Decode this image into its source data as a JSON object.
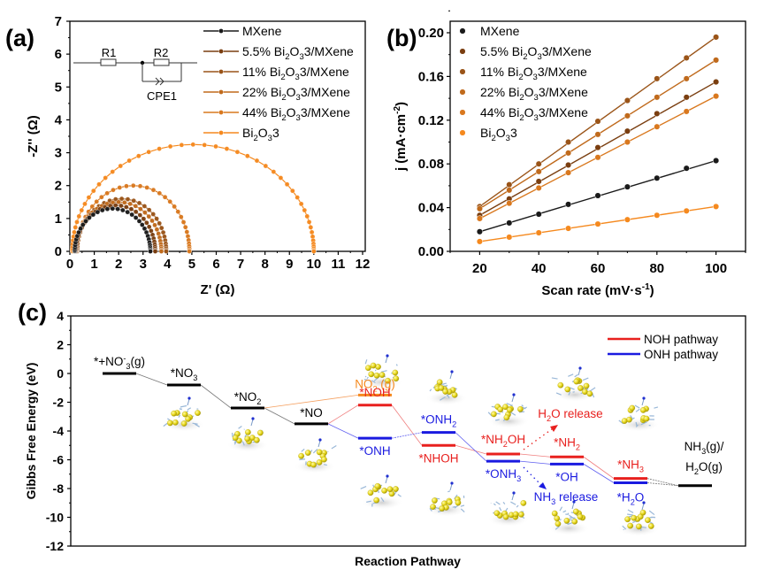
{
  "chart_data": [
    {
      "panel": "(a)",
      "type": "line",
      "title": "",
      "xlabel": "Z' (Ω)",
      "ylabel": "-Z'' (Ω)",
      "xlim": [
        0,
        12.4
      ],
      "ylim": [
        0,
        7
      ],
      "xticks": [
        "0",
        "1",
        "2",
        "3",
        "4",
        "5",
        "6",
        "7",
        "8",
        "9",
        "10",
        "11",
        "12"
      ],
      "yticks": [
        "0",
        "1",
        "2",
        "3",
        "4",
        "5",
        "6",
        "7"
      ],
      "legend_position": "top-right",
      "inset_circuit": {
        "labels": [
          "R1",
          "R2",
          "CPE1"
        ]
      },
      "series": [
        {
          "name": "MXene",
          "color": "#1a1a1a",
          "semicircle": {
            "z_start": 0.2,
            "z_end": 3.3,
            "peak": 1.3
          }
        },
        {
          "name": "5.5% Bi2O3/MXene",
          "label_parts": [
            "5.5% Bi",
            "2",
            "O",
            "3",
            "/MXene"
          ],
          "color": "#7a3e10",
          "semicircle": {
            "z_start": 0.25,
            "z_end": 3.5,
            "peak": 1.4
          }
        },
        {
          "name": "11% Bi2O3/MXene",
          "label_parts": [
            "11% Bi",
            "2",
            "O",
            "3",
            "/MXene"
          ],
          "color": "#9a5418",
          "semicircle": {
            "z_start": 0.3,
            "z_end": 3.95,
            "peak": 1.6
          }
        },
        {
          "name": "22% Bi2O3/MXene",
          "label_parts": [
            "22% Bi",
            "2",
            "O",
            "3",
            "/MXene"
          ],
          "color": "#c06a1c",
          "semicircle": {
            "z_start": 0.25,
            "z_end": 3.75,
            "peak": 1.5
          }
        },
        {
          "name": "44% Bi2O3/MXene",
          "label_parts": [
            "44% Bi",
            "2",
            "O",
            "3",
            "/MXene"
          ],
          "color": "#d9781e",
          "semicircle": {
            "z_start": 0.3,
            "z_end": 4.9,
            "peak": 2.0
          }
        },
        {
          "name": "Bi2O3",
          "label_parts": [
            "Bi",
            "2",
            "O",
            "3",
            ""
          ],
          "color": "#f5891e",
          "semicircle": {
            "z_start": 0.1,
            "z_end": 10.0,
            "peak": 3.25
          }
        }
      ]
    },
    {
      "panel": "(b)",
      "type": "scatter",
      "title": "",
      "xlabel": "Scan rate (mV·s-1)",
      "ylabel": "j (mA·cm-2)",
      "xlim": [
        10,
        110
      ],
      "ylim": [
        0,
        0.21
      ],
      "xticks": [
        "20",
        "40",
        "60",
        "80",
        "100"
      ],
      "yticks": [
        "0.00",
        "0.04",
        "0.08",
        "0.12",
        "0.16",
        "0.20"
      ],
      "legend_position": "top-left",
      "x": [
        20,
        30,
        40,
        50,
        60,
        70,
        80,
        90,
        100
      ],
      "series": [
        {
          "name": "MXene",
          "color": "#1a1a1a",
          "values": [
            0.018,
            0.026,
            0.034,
            0.043,
            0.051,
            0.059,
            0.067,
            0.076,
            0.083
          ]
        },
        {
          "name": "5.5% Bi2O3/MXene",
          "color": "#7a3e10",
          "values": [
            0.033,
            0.048,
            0.064,
            0.079,
            0.095,
            0.11,
            0.126,
            0.141,
            0.155
          ]
        },
        {
          "name": "11% Bi2O3/MXene",
          "color": "#9a5418",
          "values": [
            0.041,
            0.061,
            0.08,
            0.1,
            0.119,
            0.138,
            0.158,
            0.177,
            0.196
          ]
        },
        {
          "name": "22% Bi2O3/MXene",
          "color": "#c06a1c",
          "values": [
            0.039,
            0.056,
            0.073,
            0.09,
            0.107,
            0.124,
            0.141,
            0.158,
            0.175
          ]
        },
        {
          "name": "44% Bi2O3/MXene",
          "color": "#d9781e",
          "values": [
            0.03,
            0.044,
            0.058,
            0.072,
            0.086,
            0.1,
            0.114,
            0.128,
            0.142
          ]
        },
        {
          "name": "Bi2O3",
          "color": "#f5891e",
          "values": [
            0.009,
            0.013,
            0.017,
            0.021,
            0.025,
            0.029,
            0.033,
            0.037,
            0.041
          ]
        }
      ]
    },
    {
      "panel": "(c)",
      "type": "line",
      "subtype": "energy-level-diagram",
      "title": "",
      "xlabel": "Reaction Pathway",
      "ylabel": "Gibbs Free Energy (eV)",
      "ylim": [
        -12,
        4
      ],
      "yticks": [
        "4",
        "2",
        "0",
        "-2",
        "-4",
        "-6",
        "-8",
        "-10",
        "-12"
      ],
      "legend_position": "top-right",
      "legend": [
        {
          "name": "NOH pathway",
          "color": "#e8201e"
        },
        {
          "name": "ONH pathway",
          "color": "#1a1ae0"
        }
      ],
      "levels": [
        {
          "id": "L0",
          "step": 0,
          "energy": 0.0,
          "color": "#000000",
          "label": "*+NO3-(g)"
        },
        {
          "id": "L1",
          "step": 1,
          "energy": -0.8,
          "color": "#000000",
          "label": "*NO3"
        },
        {
          "id": "L2",
          "step": 2,
          "energy": -2.4,
          "color": "#000000",
          "label": "*NO2"
        },
        {
          "id": "L3",
          "step": 3,
          "energy": -3.5,
          "color": "#000000",
          "label": "*NO"
        },
        {
          "id": "LG",
          "step": 4,
          "energy": -1.5,
          "color": "#f5891e",
          "label": "NO2 (g)"
        },
        {
          "id": "LNOH",
          "step": 4,
          "energy": -2.2,
          "color": "#e8201e",
          "label": "*NOH"
        },
        {
          "id": "LONH",
          "step": 4,
          "energy": -4.5,
          "color": "#1a1ae0",
          "label": "*ONH"
        },
        {
          "id": "LONH2",
          "step": 5,
          "energy": -4.1,
          "color": "#1a1ae0",
          "label": "*ONH2"
        },
        {
          "id": "LNHOH",
          "step": 5,
          "energy": -5.0,
          "color": "#e8201e",
          "label": "*NHOH"
        },
        {
          "id": "LNH2OH",
          "step": 6,
          "energy": -5.6,
          "color": "#e8201e",
          "label": "*NH2OH"
        },
        {
          "id": "LONH3",
          "step": 6,
          "energy": -6.1,
          "color": "#1a1ae0",
          "label": "*ONH3"
        },
        {
          "id": "LNH2",
          "step": 7,
          "energy": -5.8,
          "color": "#e8201e",
          "label": "*NH2"
        },
        {
          "id": "LOH",
          "step": 7,
          "energy": -6.3,
          "color": "#1a1ae0",
          "label": "*OH"
        },
        {
          "id": "LNH3",
          "step": 8,
          "energy": -7.3,
          "color": "#e8201e",
          "label": "*NH3"
        },
        {
          "id": "LH2O",
          "step": 8,
          "energy": -7.6,
          "color": "#1a1ae0",
          "label": "*H2O"
        },
        {
          "id": "LF",
          "step": 9,
          "energy": -7.8,
          "color": "#000000",
          "label": "NH3(g)/H2O(g)"
        }
      ],
      "connections": [
        [
          "L0",
          "L1",
          "#777777"
        ],
        [
          "L1",
          "L2",
          "#777777"
        ],
        [
          "L2",
          "L3",
          "#777777"
        ],
        [
          "L2",
          "LG",
          "#f5a060"
        ],
        [
          "L3",
          "LNOH",
          "#f08080"
        ],
        [
          "L3",
          "LONH",
          "#6060f0"
        ],
        [
          "LNOH",
          "LNHOH",
          "#f08080"
        ],
        [
          "LONH",
          "LONH2",
          "#6060f0"
        ],
        [
          "LNHOH",
          "LNH2OH",
          "#f08080"
        ],
        [
          "LONH2",
          "LONH3",
          "#6060f0"
        ],
        [
          "LNH2OH",
          "LNH2",
          "#f08080"
        ],
        [
          "LONH3",
          "LOH",
          "#6060f0"
        ],
        [
          "LNH2",
          "LNH3",
          "#f08080"
        ],
        [
          "LOH",
          "LH2O",
          "#6060f0"
        ],
        [
          "LNH3",
          "LF",
          "#777777"
        ],
        [
          "LH2O",
          "LF",
          "#777777"
        ]
      ],
      "annotations": [
        {
          "text": "H2O release",
          "color": "#e8201e"
        },
        {
          "text": "NH3 release",
          "color": "#1a1ae0"
        }
      ]
    }
  ],
  "panel_labels": [
    "(a)",
    "(b)",
    "(c)"
  ]
}
